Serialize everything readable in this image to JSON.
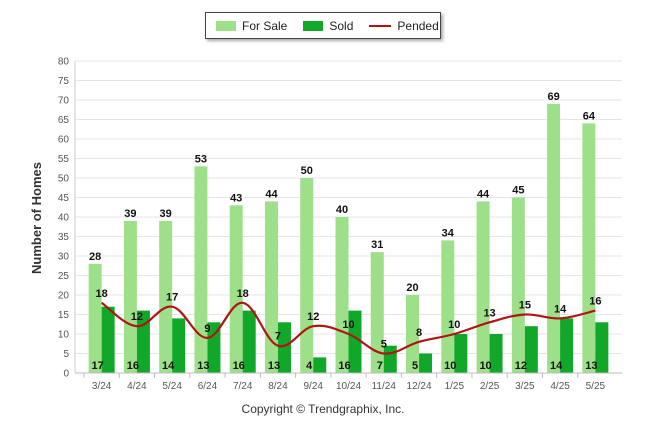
{
  "legend": {
    "for_sale": "For Sale",
    "sold": "Sold",
    "pended": "Pended"
  },
  "copyright": "Copyright © Trendgraphix, Inc.",
  "colors": {
    "for_sale": "#9ee08a",
    "sold": "#11a82a",
    "pended": "#b01414",
    "grid": "#e6e6e6",
    "axis_text": "#555555"
  },
  "chart_data": {
    "type": "bar",
    "categories": [
      "3/24",
      "4/24",
      "5/24",
      "6/24",
      "7/24",
      "8/24",
      "9/24",
      "10/24",
      "11/24",
      "12/24",
      "1/25",
      "2/25",
      "3/25",
      "4/25",
      "5/25"
    ],
    "series": [
      {
        "name": "For Sale",
        "type": "bar",
        "values": [
          28,
          39,
          39,
          53,
          43,
          44,
          50,
          40,
          31,
          20,
          34,
          44,
          45,
          69,
          64
        ]
      },
      {
        "name": "Sold",
        "type": "bar",
        "values": [
          17,
          16,
          14,
          13,
          16,
          13,
          4,
          16,
          7,
          5,
          10,
          10,
          12,
          14,
          13
        ]
      },
      {
        "name": "Pended",
        "type": "line",
        "values": [
          18,
          12,
          17,
          9,
          18,
          7,
          12,
          10,
          5,
          8,
          10,
          13,
          15,
          14,
          16
        ]
      }
    ],
    "ylabel": "Number of Homes",
    "xlabel": "",
    "ylim": [
      0,
      80
    ],
    "yticks": [
      0,
      5,
      10,
      15,
      20,
      25,
      30,
      35,
      40,
      45,
      50,
      55,
      60,
      65,
      70,
      75,
      80
    ],
    "grid": true,
    "legend_position": "top-center"
  }
}
